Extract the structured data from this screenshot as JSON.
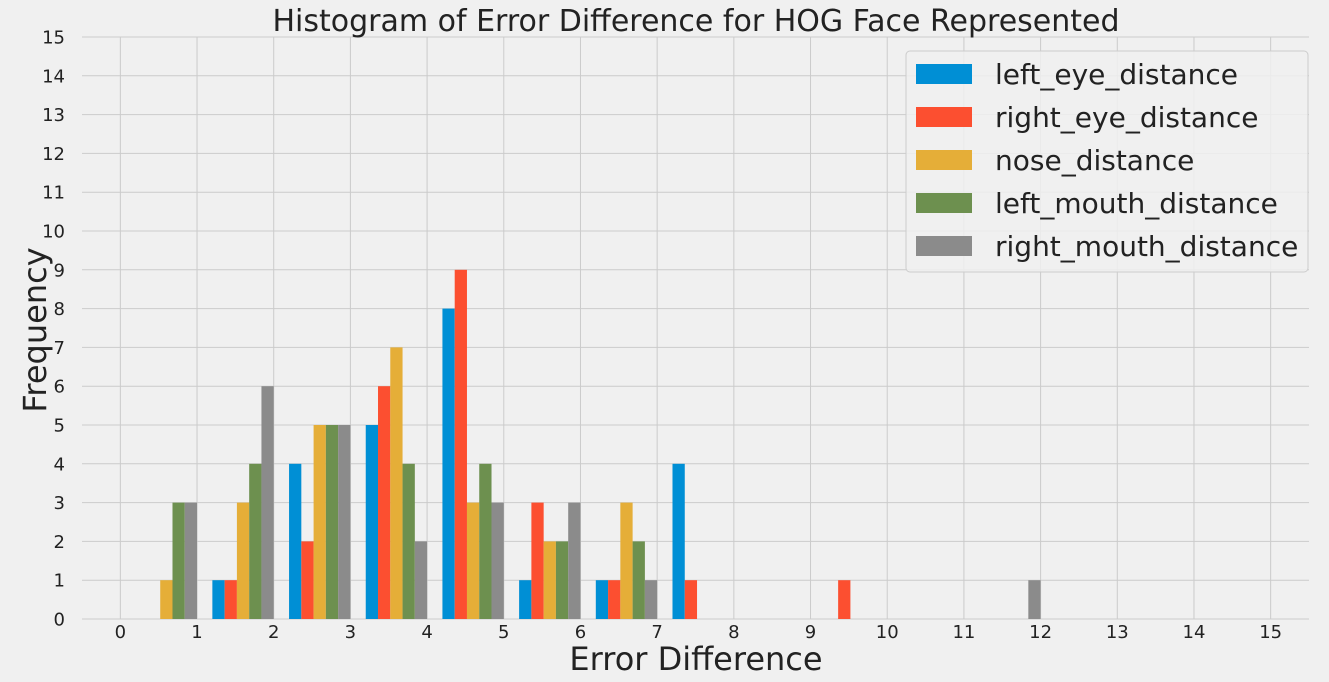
{
  "chart_data": {
    "type": "bar",
    "title": "Histogram of Error Difference for HOG Face Represented",
    "xlabel": "Error Difference",
    "ylabel": "Frequency",
    "xlim": [
      -0.5,
      15.5
    ],
    "ylim": [
      0,
      15
    ],
    "x_ticks": [
      "0",
      "1",
      "2",
      "3",
      "4",
      "5",
      "6",
      "7",
      "8",
      "9",
      "10",
      "11",
      "12",
      "13",
      "14",
      "15"
    ],
    "y_ticks": [
      "0",
      "1",
      "2",
      "3",
      "4",
      "5",
      "6",
      "7",
      "8",
      "9",
      "10",
      "11",
      "12",
      "13",
      "14",
      "15"
    ],
    "grid": true,
    "legend_position": "top-right",
    "bin_starts": [
      0,
      1,
      2,
      3,
      4,
      5,
      6,
      7,
      8,
      9,
      10,
      11
    ],
    "series": [
      {
        "name": "left_eye_distance",
        "color": "#008fd5",
        "values": [
          0,
          1,
          4,
          5,
          8,
          1,
          1,
          4,
          0,
          0,
          0,
          0
        ]
      },
      {
        "name": "right_eye_distance",
        "color": "#fc4f30",
        "values": [
          0,
          1,
          2,
          6,
          9,
          3,
          1,
          1,
          0,
          1,
          0,
          0
        ]
      },
      {
        "name": "nose_distance",
        "color": "#e5ae38",
        "values": [
          1,
          3,
          5,
          7,
          3,
          2,
          3,
          0,
          0,
          0,
          0,
          0
        ]
      },
      {
        "name": "left_mouth_distance",
        "color": "#6d904f",
        "values": [
          3,
          4,
          5,
          4,
          4,
          2,
          2,
          0,
          0,
          0,
          0,
          0
        ]
      },
      {
        "name": "right_mouth_distance",
        "color": "#8b8b8b",
        "values": [
          3,
          6,
          5,
          2,
          3,
          3,
          1,
          0,
          0,
          0,
          0,
          1
        ]
      }
    ]
  }
}
